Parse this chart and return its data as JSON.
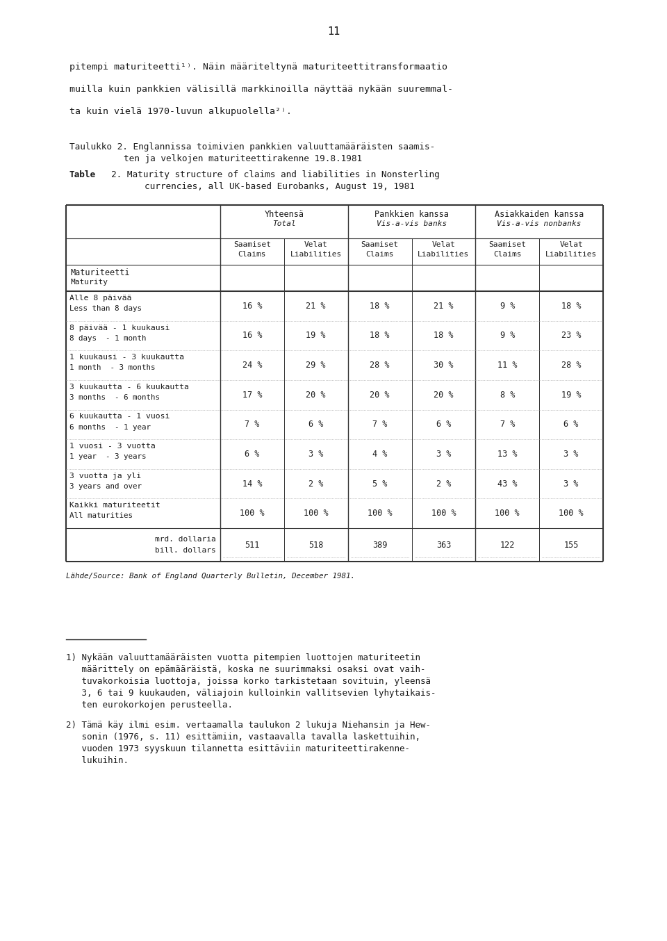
{
  "page_number": "11",
  "body_text_lines": [
    "pitempi maturiteetti¹⧑. Näin määriteltynä maturiteettitransformaatio",
    "muilla kuin pankkien välisillä markkinoilla näyttää nykään suuremmal-",
    "ta kuin vielä 1970-luvun alkupuolella²⧑."
  ],
  "bg_color": "#ffffff",
  "text_color": "#1a1a1a",
  "table_border_color": "#333333",
  "rows": [
    {
      "fi": "Alle 8 päivää",
      "en": "Less than 8 days",
      "values": [
        "16 %",
        "21 %",
        "18 %",
        "21 %",
        "9 %",
        "18 %"
      ]
    },
    {
      "fi": "8 päivää - 1 kuukausi",
      "en": "8 days  - 1 month",
      "values": [
        "16 %",
        "19 %",
        "18 %",
        "18 %",
        "9 %",
        "23 %"
      ]
    },
    {
      "fi": "1 kuukausi - 3 kuukautta",
      "en": "1 month  - 3 months",
      "values": [
        "24 %",
        "29 %",
        "28 %",
        "30 %",
        "11 %",
        "28 %"
      ]
    },
    {
      "fi": "3 kuukautta - 6 kuukautta",
      "en": "3 months  - 6 months",
      "values": [
        "17 %",
        "20 %",
        "20 %",
        "20 %",
        "8 %",
        "19 %"
      ]
    },
    {
      "fi": "6 kuukautta - 1 vuosi",
      "en": "6 months  - 1 year",
      "values": [
        "7 %",
        "6 %",
        "7 %",
        "6 %",
        "7 %",
        "6 %"
      ]
    },
    {
      "fi": "1 vuosi - 3 vuotta",
      "en": "1 year  - 3 years",
      "values": [
        "6 %",
        "3 %",
        "4 %",
        "3 %",
        "13 %",
        "3 %"
      ]
    },
    {
      "fi": "3 vuotta ja yli",
      "en": "3 years and over",
      "values": [
        "14 %",
        "2 %",
        "5 %",
        "2 %",
        "43 %",
        "3 %"
      ]
    },
    {
      "fi": "Kaikki maturiteetit",
      "en": "All maturities",
      "values": [
        "100 %",
        "100 %",
        "100 %",
        "100 %",
        "100 %",
        "100 %"
      ]
    }
  ],
  "totals_label_fi": "mrd. dollaria",
  "totals_label_en": "bill. dollars",
  "totals_values": [
    "511",
    "518",
    "389",
    "363",
    "122",
    "155"
  ],
  "source_note_italic": "Lähde/Source: ",
  "source_note_rest": "Bank of England Quarterly Bulletin",
  "source_note_end": ", December 1981.",
  "footnote_1_lines": [
    "1) Nykään valuuttamääräisten vuotta pitempien luottojen maturiteetin",
    "   määrittely on epämääräistä, koska ne suurimmaksi osaksi ovat vaih-",
    "   tuvakorkoisia luottoja, joissa korko tarkistetaan sovituin, yleensä",
    "   3, 6 tai 9 kuukauden, väliajoin kulloinkin vallitsevien lyhytaikais-",
    "   ten eurokorkojen perusteella."
  ],
  "footnote_2_lines": [
    "2) Tämä käy ilmi esim. vertaamalla taulukon 2 lukuja Niehansin ja Hew-",
    "   sonin (1976, s. 11) esittämiin, vastaavalla tavalla laskettuihin,",
    "   vuoden 1973 syyskuun tilannetta esittäviin maturiteettirakenne-",
    "   lukuihin."
  ]
}
